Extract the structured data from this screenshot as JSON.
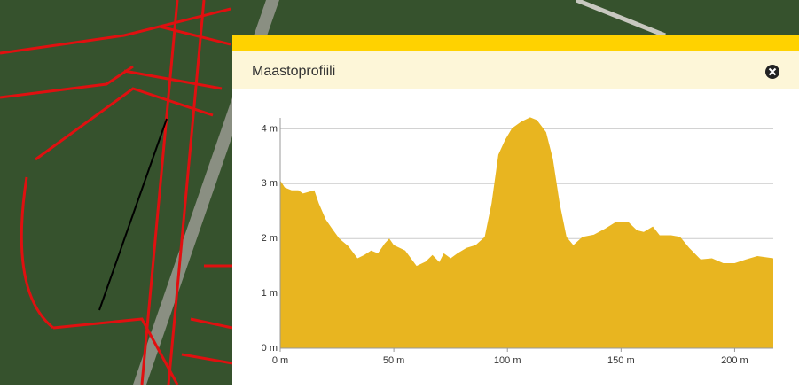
{
  "panel": {
    "title": "Maastoprofiili"
  },
  "chart_data": {
    "type": "area",
    "color": "#e8b520",
    "grid": true,
    "x": [
      0,
      2,
      5,
      8,
      10,
      15,
      17,
      20,
      23,
      26,
      30,
      34,
      37,
      40,
      43,
      46,
      48,
      50,
      55,
      60,
      64,
      67,
      70,
      72,
      75,
      78,
      82,
      86,
      90,
      93,
      96,
      99,
      102,
      106,
      110,
      113,
      117,
      120,
      123,
      126,
      129,
      133,
      138,
      143,
      148,
      153,
      157,
      160,
      164,
      167,
      172,
      176,
      180,
      185,
      190,
      195,
      200,
      205,
      210,
      217
    ],
    "values": [
      3.06,
      2.93,
      2.88,
      2.88,
      2.82,
      2.88,
      2.64,
      2.35,
      2.17,
      2.0,
      1.86,
      1.64,
      1.7,
      1.78,
      1.73,
      1.91,
      2.0,
      1.88,
      1.78,
      1.5,
      1.58,
      1.7,
      1.57,
      1.73,
      1.64,
      1.73,
      1.83,
      1.88,
      2.03,
      2.64,
      3.53,
      3.8,
      4.01,
      4.13,
      4.21,
      4.16,
      3.94,
      3.45,
      2.64,
      2.03,
      1.88,
      2.03,
      2.07,
      2.18,
      2.31,
      2.31,
      2.15,
      2.12,
      2.22,
      2.06,
      2.06,
      2.03,
      1.83,
      1.62,
      1.64,
      1.55,
      1.55,
      1.62,
      1.68,
      1.64
    ],
    "xlim": [
      0,
      217
    ],
    "ylim": [
      0,
      4.2
    ],
    "xticks": [
      {
        "value": 0,
        "label": "0 m"
      },
      {
        "value": 50,
        "label": "50 m"
      },
      {
        "value": 100,
        "label": "100 m"
      },
      {
        "value": 150,
        "label": "150 m"
      },
      {
        "value": 200,
        "label": "200 m"
      }
    ],
    "yticks": [
      {
        "value": 0,
        "label": "0 m"
      },
      {
        "value": 1,
        "label": "1 m"
      },
      {
        "value": 2,
        "label": "2 m"
      },
      {
        "value": 3,
        "label": "3 m"
      },
      {
        "value": 4,
        "label": "4 m"
      }
    ]
  }
}
